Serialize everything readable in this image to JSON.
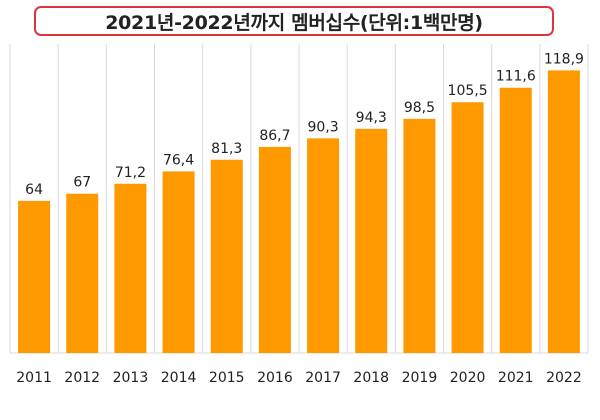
{
  "chart_data": {
    "type": "bar",
    "title": "2021년-2022년까지 멤버십수(단위:1백만명)",
    "categories": [
      "2011",
      "2012",
      "2013",
      "2014",
      "2015",
      "2016",
      "2017",
      "2018",
      "2019",
      "2020",
      "2021",
      "2022"
    ],
    "values": [
      64,
      67,
      71.2,
      76.4,
      81.3,
      86.7,
      90.3,
      94.3,
      98.5,
      105.5,
      111.6,
      118.9
    ],
    "value_labels": [
      "64",
      "67",
      "71,2",
      "76,4",
      "81,3",
      "86,7",
      "90,3",
      "94,3",
      "98,5",
      "105,5",
      "111,6",
      "118,9"
    ],
    "xlabel": "",
    "ylabel": "",
    "ylim": [
      0,
      130
    ],
    "grid": "vertical-bands",
    "legend": "none",
    "colors": {
      "bar": "#ff9900",
      "grid": "#d9d9d9",
      "title_border": "#d9363e"
    }
  }
}
